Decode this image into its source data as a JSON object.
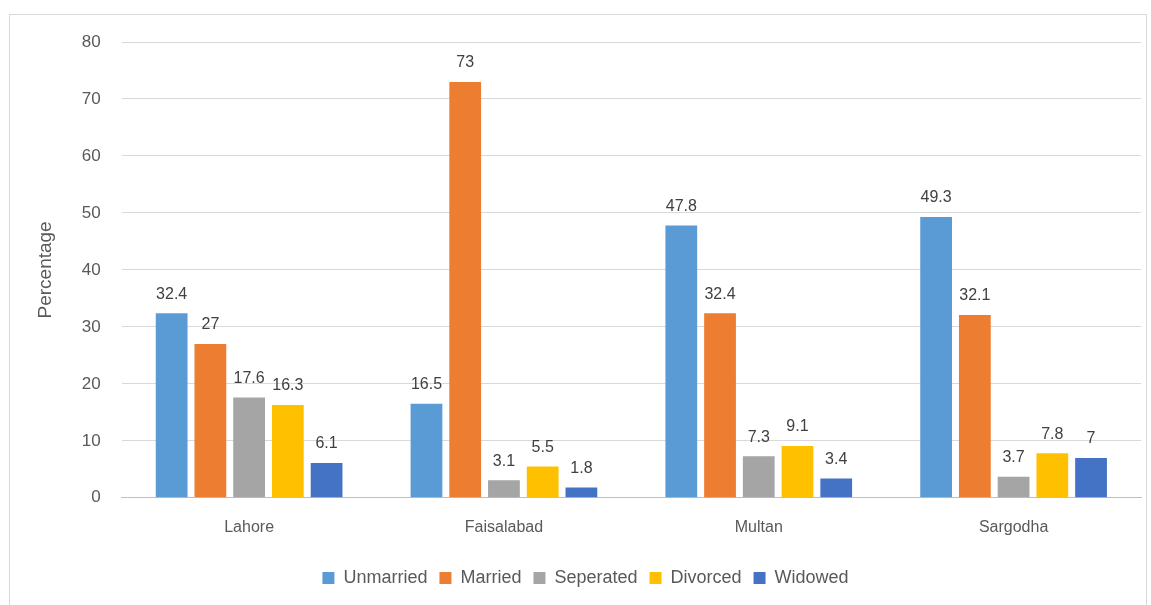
{
  "chart_data": {
    "type": "bar",
    "ylabel": "Percentage",
    "categories": [
      "Lahore",
      "Faisalabad",
      "Multan",
      "Sargodha"
    ],
    "series": [
      {
        "name": "Unmarried",
        "color": "#5b9bd5",
        "values": [
          32.4,
          16.5,
          47.8,
          49.3
        ]
      },
      {
        "name": "Married",
        "color": "#ed7d31",
        "values": [
          27,
          73,
          32.4,
          32.1
        ]
      },
      {
        "name": "Seperated",
        "color": "#a5a5a5",
        "values": [
          17.6,
          3.1,
          7.3,
          3.7
        ]
      },
      {
        "name": "Divorced",
        "color": "#ffc000",
        "values": [
          16.3,
          5.5,
          9.1,
          7.8
        ]
      },
      {
        "name": "Widowed",
        "color": "#4472c4",
        "values": [
          6.1,
          1.8,
          3.4,
          7
        ]
      }
    ],
    "ylim": [
      0,
      80
    ],
    "yticks": [
      0,
      10,
      20,
      30,
      40,
      50,
      60,
      70,
      80
    ],
    "grid": "y",
    "legend": "bottom",
    "data_labels": true
  }
}
